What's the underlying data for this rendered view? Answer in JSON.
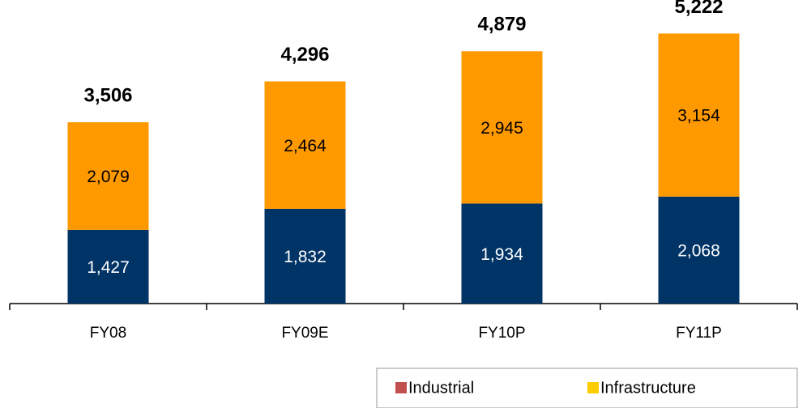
{
  "chart_data": {
    "type": "stacked_bar",
    "categories": [
      "FY08",
      "FY09E",
      "FY10P",
      "FY11P"
    ],
    "series": [
      {
        "name": "Industrial",
        "color": "#003366",
        "legend_color": "#c0504d",
        "label_color": "#ffffff",
        "values": [
          1427,
          1832,
          1934,
          2068
        ],
        "value_labels": [
          "1,427",
          "1,832",
          "1,934",
          "2,068"
        ]
      },
      {
        "name": "Infrastructure",
        "color": "#ff9900",
        "legend_color": "#ffcc00",
        "label_color": "#000000",
        "values": [
          2079,
          2464,
          2945,
          3154
        ],
        "value_labels": [
          "2,079",
          "2,464",
          "2,945",
          "3,154"
        ]
      }
    ],
    "totals": {
      "values": [
        3506,
        4296,
        4879,
        5222
      ],
      "value_labels": [
        "3,506",
        "4,296",
        "4,879",
        "5,222"
      ]
    },
    "ylim": [
      0,
      5870
    ],
    "legend": "bottom-right"
  }
}
